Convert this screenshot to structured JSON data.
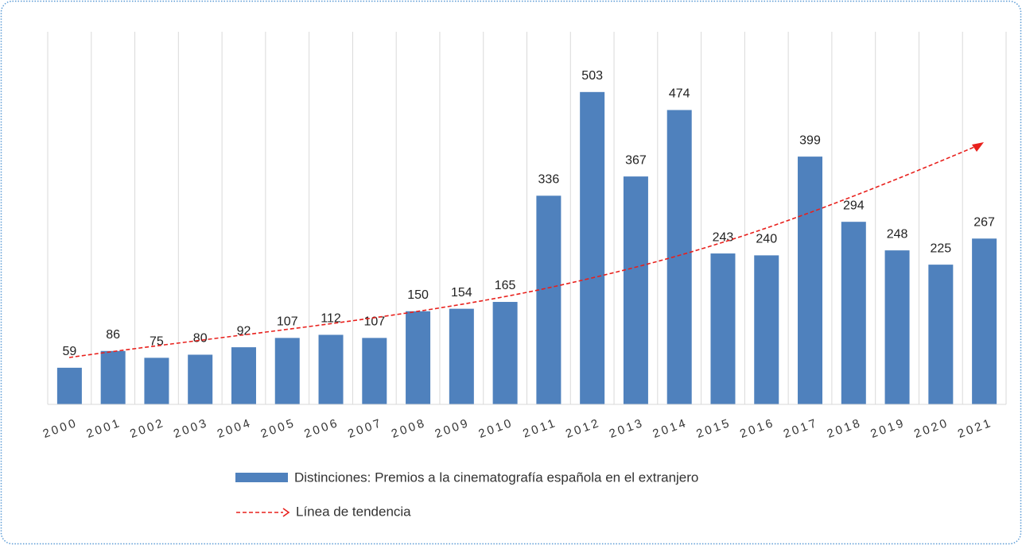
{
  "chart_data": {
    "type": "bar",
    "categories": [
      "2000",
      "2001",
      "2002",
      "2003",
      "2004",
      "2005",
      "2006",
      "2007",
      "2008",
      "2009",
      "2010",
      "2011",
      "2012",
      "2013",
      "2014",
      "2015",
      "2016",
      "2017",
      "2018",
      "2019",
      "2020",
      "2021"
    ],
    "series": [
      {
        "name": "Distinciones: Premios a la cinematografía española en el extranjero",
        "color": "#4f81bd",
        "values": [
          59,
          86,
          75,
          80,
          92,
          107,
          112,
          107,
          150,
          154,
          165,
          336,
          503,
          367,
          474,
          243,
          240,
          399,
          294,
          248,
          225,
          267
        ]
      }
    ],
    "trendline_label": "Línea de tendencia",
    "ylim": [
      0,
      600
    ],
    "grid": true,
    "legend": "bottom"
  }
}
